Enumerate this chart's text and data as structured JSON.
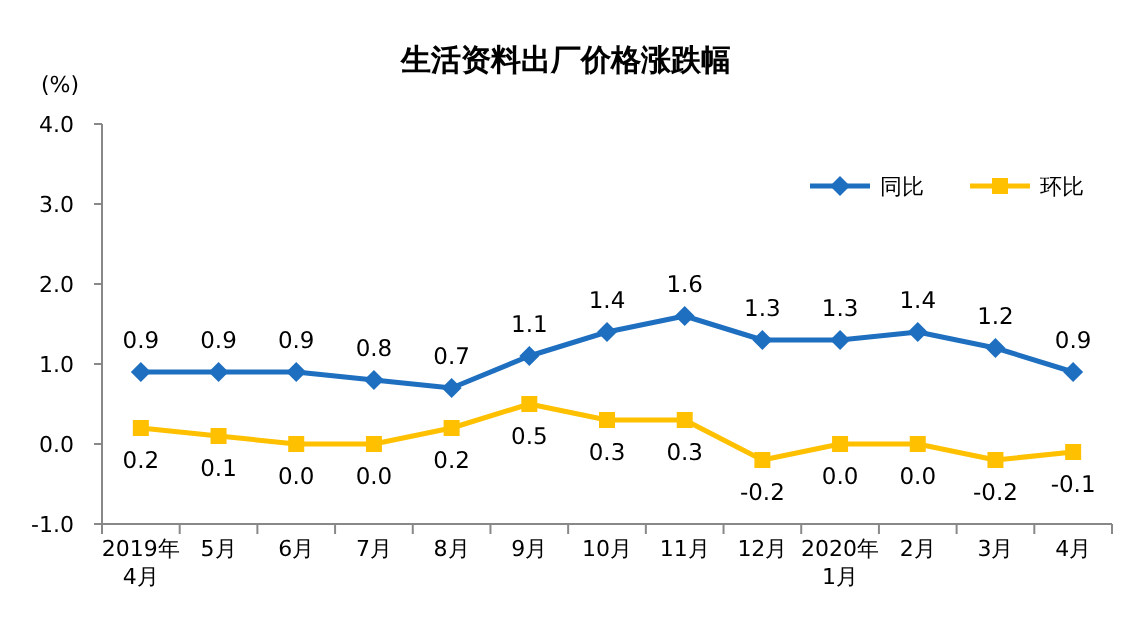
{
  "chart_data": {
    "type": "line",
    "title": "生活资料出厂价格涨跌幅",
    "ylabel": "(%)",
    "categories": [
      "2019年\n4月",
      "5月",
      "6月",
      "7月",
      "8月",
      "9月",
      "10月",
      "11月",
      "12月",
      "2020年\n1月",
      "2月",
      "3月",
      "4月"
    ],
    "series": [
      {
        "name": "同比",
        "color": "#1f6fc0",
        "marker": "diamond",
        "values": [
          0.9,
          0.9,
          0.9,
          0.8,
          0.7,
          1.1,
          1.4,
          1.6,
          1.3,
          1.3,
          1.4,
          1.2,
          0.9
        ],
        "value_labels": [
          "0.9",
          "0.9",
          "0.9",
          "0.8",
          "0.7",
          "1.1",
          "1.4",
          "1.6",
          "1.3",
          "1.3",
          "1.4",
          "1.2",
          "0.9"
        ]
      },
      {
        "name": "环比",
        "color": "#ffc000",
        "marker": "square",
        "values": [
          0.2,
          0.1,
          0.0,
          0.0,
          0.2,
          0.5,
          0.3,
          0.3,
          -0.2,
          0.0,
          0.0,
          -0.2,
          -0.1
        ],
        "value_labels": [
          "0.2",
          "0.1",
          "0.0",
          "0.0",
          "0.2",
          "0.5",
          "0.3",
          "0.3",
          "-0.2",
          "0.0",
          "0.0",
          "-0.2",
          "-0.1"
        ]
      }
    ],
    "ylim": [
      -1,
      4
    ],
    "yticks": [
      {
        "value": -1,
        "label": "-1.0"
      },
      {
        "value": 0,
        "label": "0.0"
      },
      {
        "value": 1,
        "label": "1.0"
      },
      {
        "value": 2,
        "label": "2.0"
      },
      {
        "value": 3,
        "label": "3.0"
      },
      {
        "value": 4,
        "label": "4.0"
      }
    ],
    "legend": "top right",
    "grid": false,
    "line_style": "solid"
  }
}
